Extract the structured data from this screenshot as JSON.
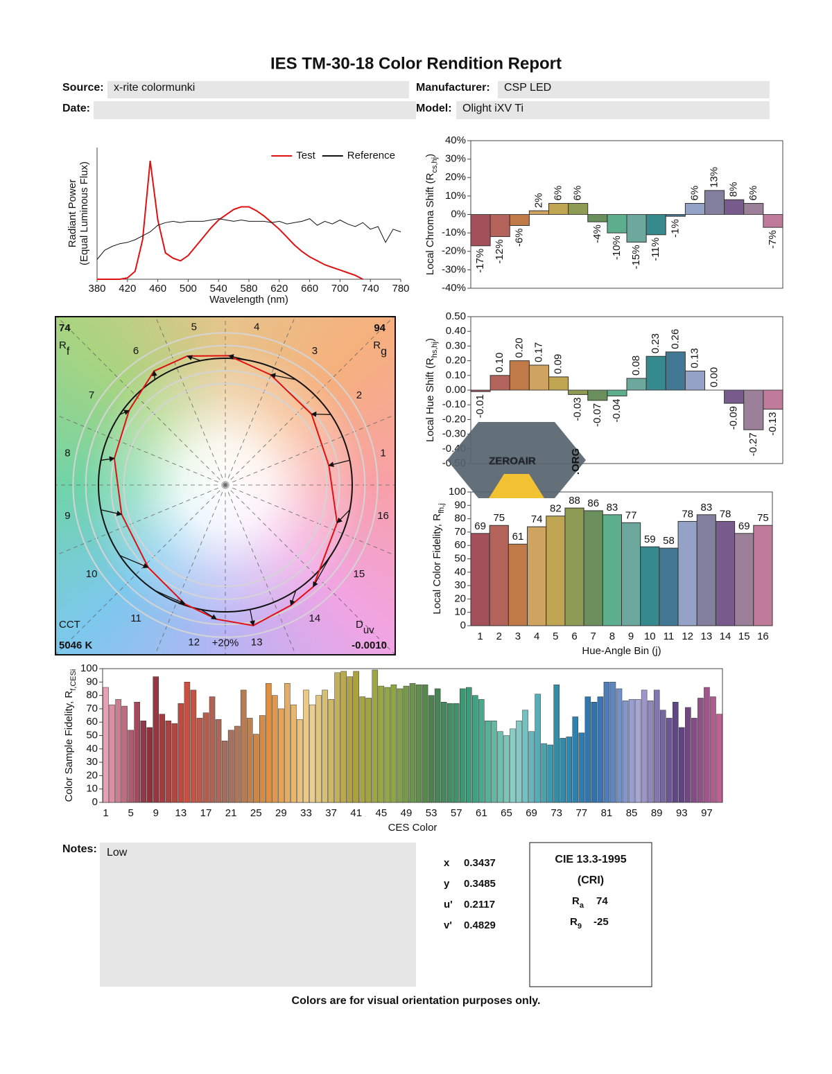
{
  "header": {
    "title": "IES TM-30-18 Color Rendition Report",
    "source_label": "Source:",
    "source": "x-rite colormunki",
    "manufacturer_label": "Manufacturer:",
    "manufacturer": "CSP LED",
    "date_label": "Date:",
    "model_label": "Model:",
    "model": "Olight iXV Ti"
  },
  "chart_data": [
    {
      "type": "line",
      "ylabel": "Radiant Power",
      "ylabel2": "(Equal Luminous Flux)",
      "xlabel": "Wavelength (nm)",
      "legend": "upper right",
      "x": [
        380,
        390,
        400,
        410,
        420,
        430,
        440,
        450,
        460,
        470,
        480,
        490,
        500,
        510,
        520,
        530,
        540,
        550,
        560,
        570,
        580,
        590,
        600,
        610,
        620,
        630,
        640,
        650,
        660,
        670,
        680,
        690,
        700,
        710,
        720,
        730,
        740,
        750,
        760,
        770,
        780
      ],
      "series": [
        {
          "name": "Test",
          "color": "#e01010",
          "values": [
            0,
            0,
            0,
            0,
            0.01,
            0.06,
            0.3,
            0.9,
            0.45,
            0.2,
            0.16,
            0.14,
            0.18,
            0.25,
            0.32,
            0.39,
            0.45,
            0.49,
            0.53,
            0.55,
            0.55,
            0.52,
            0.48,
            0.43,
            0.38,
            0.32,
            0.26,
            0.21,
            0.17,
            0.14,
            0.11,
            0.09,
            0.07,
            0.05,
            0.03,
            0,
            null,
            null,
            null,
            null,
            null
          ]
        },
        {
          "name": "Reference",
          "color": "#111111",
          "values": [
            0.15,
            0.22,
            0.25,
            0.27,
            0.28,
            0.3,
            0.33,
            0.36,
            0.41,
            0.43,
            0.44,
            0.43,
            0.44,
            0.44,
            0.44,
            0.45,
            0.46,
            0.45,
            0.44,
            0.45,
            0.44,
            0.44,
            0.44,
            0.43,
            0.44,
            0.42,
            0.43,
            0.44,
            0.46,
            0.41,
            0.44,
            0.42,
            0.45,
            0.42,
            0.4,
            0.43,
            0.38,
            0.4,
            0.28,
            0.38,
            0.36
          ]
        }
      ],
      "xlim": [
        380,
        780
      ],
      "xticks": [
        380,
        420,
        460,
        500,
        540,
        580,
        620,
        660,
        700,
        740,
        780
      ],
      "ylim": [
        0,
        1
      ]
    },
    {
      "type": "bar",
      "ylabel": "Local Chroma Shift (R",
      "ylabel_sub": "cs,hj",
      "ylabel_end": ")",
      "values": [
        -17,
        -12,
        -6,
        2,
        6,
        6,
        -4,
        -10,
        -15,
        -11,
        -1,
        6,
        13,
        8,
        6,
        -7
      ],
      "value_labels": [
        "-17%",
        "-12%",
        "-6%",
        "2%",
        "6%",
        "6%",
        "-4%",
        "-10%",
        "-15%",
        "-11%",
        "-1%",
        "6%",
        "13%",
        "8%",
        "6%",
        "-7%"
      ],
      "colors": [
        "#a3505a",
        "#b3635a",
        "#c07a48",
        "#cfa460",
        "#c0a652",
        "#8e9b55",
        "#6b8f5c",
        "#5dae8c",
        "#6da89e",
        "#368a8e",
        "#437894",
        "#95a2c8",
        "#837f9e",
        "#775b8c",
        "#9c7f99",
        "#c07b9b"
      ],
      "ylim": [
        -40,
        40
      ],
      "yticks": [
        {
          "value": -40,
          "label": "-40%"
        },
        {
          "value": -30,
          "label": "-30%"
        },
        {
          "value": -20,
          "label": "-20%"
        },
        {
          "value": -10,
          "label": "-10%"
        },
        {
          "value": 0,
          "label": "0%"
        },
        {
          "value": 10,
          "label": "10%"
        },
        {
          "value": 20,
          "label": "20%"
        },
        {
          "value": 30,
          "label": "30%"
        },
        {
          "value": 40,
          "label": "40%"
        }
      ]
    },
    {
      "type": "bar",
      "ylabel": "Local Hue Shift (R",
      "ylabel_sub": "hs,hj",
      "ylabel_end": ")",
      "values": [
        -0.01,
        0.1,
        0.2,
        0.17,
        0.09,
        -0.03,
        -0.07,
        -0.04,
        0.08,
        0.23,
        0.26,
        0.13,
        0,
        -0.09,
        -0.27,
        -0.13
      ],
      "value_labels": [
        "-0.01",
        "0.10",
        "0.20",
        "0.17",
        "0.09",
        "-0.03",
        "-0.07",
        "-0.04",
        "0.08",
        "0.23",
        "0.26",
        "0.13",
        "0.00",
        "-0.09",
        "-0.27",
        "-0.13"
      ],
      "colors": [
        "#a3505a",
        "#b3635a",
        "#c07a48",
        "#cfa460",
        "#c0a652",
        "#8e9b55",
        "#6b8f5c",
        "#5dae8c",
        "#6da89e",
        "#368a8e",
        "#437894",
        "#95a2c8",
        "#837f9e",
        "#775b8c",
        "#9c7f99",
        "#c07b9b"
      ],
      "ylim": [
        -0.5,
        0.5
      ],
      "yticks": [
        {
          "value": -0.5,
          "label": "-0.50"
        },
        {
          "value": -0.4,
          "label": "-0.40"
        },
        {
          "value": -0.3,
          "label": "-0.30"
        },
        {
          "value": -0.2,
          "label": "-0.20"
        },
        {
          "value": -0.1,
          "label": "-0.10"
        },
        {
          "value": 0,
          "label": "0.00"
        },
        {
          "value": 0.1,
          "label": "0.10"
        },
        {
          "value": 0.2,
          "label": "0.20"
        },
        {
          "value": 0.3,
          "label": "0.30"
        },
        {
          "value": 0.4,
          "label": "0.40"
        },
        {
          "value": 0.5,
          "label": "0.50"
        }
      ]
    },
    {
      "type": "bar",
      "ylabel": "Local Color Fidelity, R",
      "ylabel_sub": "fh,j",
      "xlabel": "Hue-Angle Bin (j)",
      "categories": [
        "1",
        "2",
        "3",
        "4",
        "5",
        "6",
        "7",
        "8",
        "9",
        "10",
        "11",
        "12",
        "13",
        "14",
        "15",
        "16"
      ],
      "values": [
        69,
        75,
        61,
        74,
        82,
        88,
        86,
        83,
        77,
        59,
        58,
        78,
        83,
        78,
        69,
        75
      ],
      "colors": [
        "#a3505a",
        "#b3635a",
        "#c07a48",
        "#cfa460",
        "#c0a652",
        "#8e9b55",
        "#6b8f5c",
        "#5dae8c",
        "#6da89e",
        "#368a8e",
        "#437894",
        "#95a2c8",
        "#837f9e",
        "#775b8c",
        "#9c7f99",
        "#c07b9b"
      ],
      "ylim": [
        0,
        100
      ],
      "yticks": [
        0,
        10,
        20,
        30,
        40,
        50,
        60,
        70,
        80,
        90,
        100
      ]
    },
    {
      "type": "bar",
      "ylabel": "Color Sample Fidelity, R",
      "ylabel_sub": "f,CESi",
      "xlabel": "CES Color",
      "categories": [
        "1",
        null,
        null,
        null,
        "5",
        null,
        null,
        null,
        "9",
        null,
        null,
        null,
        "13",
        null,
        null,
        null,
        "17",
        null,
        null,
        null,
        "21",
        null,
        null,
        null,
        "25",
        null,
        null,
        null,
        "29",
        null,
        null,
        null,
        "33",
        null,
        null,
        null,
        "37",
        null,
        null,
        null,
        "41",
        null,
        null,
        null,
        "45",
        null,
        null,
        null,
        "49",
        null,
        null,
        null,
        "53",
        null,
        null,
        null,
        "57",
        null,
        null,
        null,
        "61",
        null,
        null,
        null,
        "65",
        null,
        null,
        null,
        "69",
        null,
        null,
        null,
        "73",
        null,
        null,
        null,
        "77",
        null,
        null,
        null,
        "81",
        null,
        null,
        null,
        "85",
        null,
        null,
        null,
        "89",
        null,
        null,
        null,
        "93",
        null,
        null,
        null,
        "97",
        null,
        null
      ],
      "values": [
        86,
        73,
        77,
        72,
        54,
        75,
        61,
        56,
        94,
        66,
        61,
        59,
        74,
        90,
        84,
        63,
        67,
        79,
        62,
        46,
        54,
        57,
        84,
        63,
        51,
        65,
        89,
        80,
        70,
        89,
        73,
        62,
        84,
        73,
        80,
        84,
        77,
        97,
        98,
        94,
        98,
        79,
        78,
        99,
        87,
        86,
        88,
        85,
        87,
        89,
        88,
        88,
        80,
        85,
        75,
        74,
        74,
        85,
        86,
        80,
        77,
        61,
        61,
        53,
        50,
        55,
        61,
        69,
        53,
        81,
        44,
        43,
        88,
        48,
        49,
        64,
        52,
        79,
        75,
        79,
        90,
        90,
        85,
        76,
        77,
        77,
        84,
        76,
        84,
        69,
        63,
        75,
        56,
        71,
        63,
        78,
        86,
        79,
        66
      ],
      "colors": [
        "#e8a0b4",
        "#8a3040",
        "#c85040",
        "#a07060",
        "#e09040",
        "#ecd090",
        "#b0a040",
        "#90a848",
        "#4a8050",
        "#3aa080",
        "#8cd0c8",
        "#3090a8",
        "#3070b0",
        "#a8a8d8",
        "#5a4080",
        "#c06090"
      ],
      "ylim": [
        0,
        100
      ],
      "yticks": [
        0,
        10,
        20,
        30,
        40,
        50,
        60,
        70,
        80,
        90,
        100
      ]
    }
  ],
  "vector_graphic": {
    "rf": 74,
    "rf_symbol": "R",
    "rf_sub": "f",
    "rg": 94,
    "rg_symbol": "R",
    "rg_sub": "g",
    "cct_label": "CCT",
    "cct": "5046 K",
    "duv_symbol": "D",
    "duv_sub": "uv",
    "duv": "-0.0010",
    "scale_label": "+20%",
    "bins": [
      "1",
      "2",
      "3",
      "4",
      "5",
      "6",
      "7",
      "8",
      "9",
      "10",
      "11",
      "12",
      "13",
      "14",
      "15",
      "16"
    ]
  },
  "notes": {
    "label": "Notes:",
    "text": "Low"
  },
  "chromaticity": [
    {
      "label": "x",
      "value": 0.3437
    },
    {
      "label": "y",
      "value": 0.3485
    },
    {
      "label": "u'",
      "value": 0.2117
    },
    {
      "label": "v'",
      "value": 0.4829
    }
  ],
  "cri": {
    "title": "CIE 13.3-1995",
    "subtitle": "(CRI)",
    "ra_symbol": "R",
    "ra_sub": "a",
    "ra": 74,
    "r9_symbol": "R",
    "r9_sub": "9",
    "r9": -25
  },
  "watermark": {
    "text": "ZEROAIR",
    "domain": ".ORG"
  },
  "footer": "Colors are for visual orientation purposes only."
}
